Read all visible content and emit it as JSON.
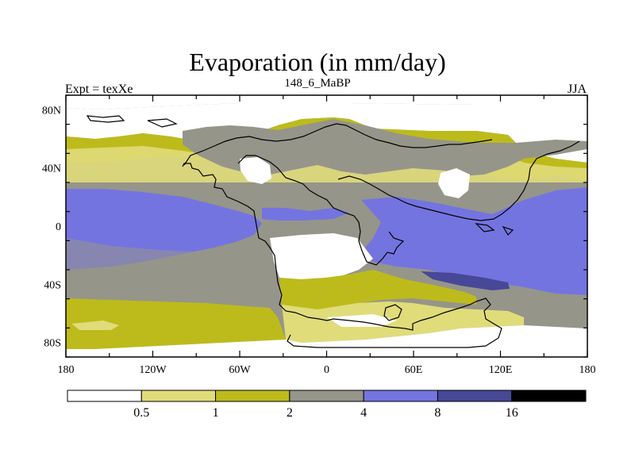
{
  "title": "Evaporation (in mm/day)",
  "left_label": "Expt = texXe",
  "center_label": "148_6_MaBP",
  "right_label": "JJA",
  "map": {
    "lon_ticks": [
      "180",
      "120W",
      "60W",
      "0",
      "60E",
      "120E",
      "180"
    ],
    "lat_ticks": [
      "80N",
      "40N",
      "0",
      "40S",
      "80S"
    ]
  },
  "colorbar": {
    "levels": [
      "0.5",
      "1",
      "2",
      "4",
      "8",
      "16"
    ],
    "colors": [
      "#ffffff",
      "#e0dc7a",
      "#bdbb1b",
      "#96958a",
      "#7474e0",
      "#474896",
      "#000000"
    ]
  }
}
